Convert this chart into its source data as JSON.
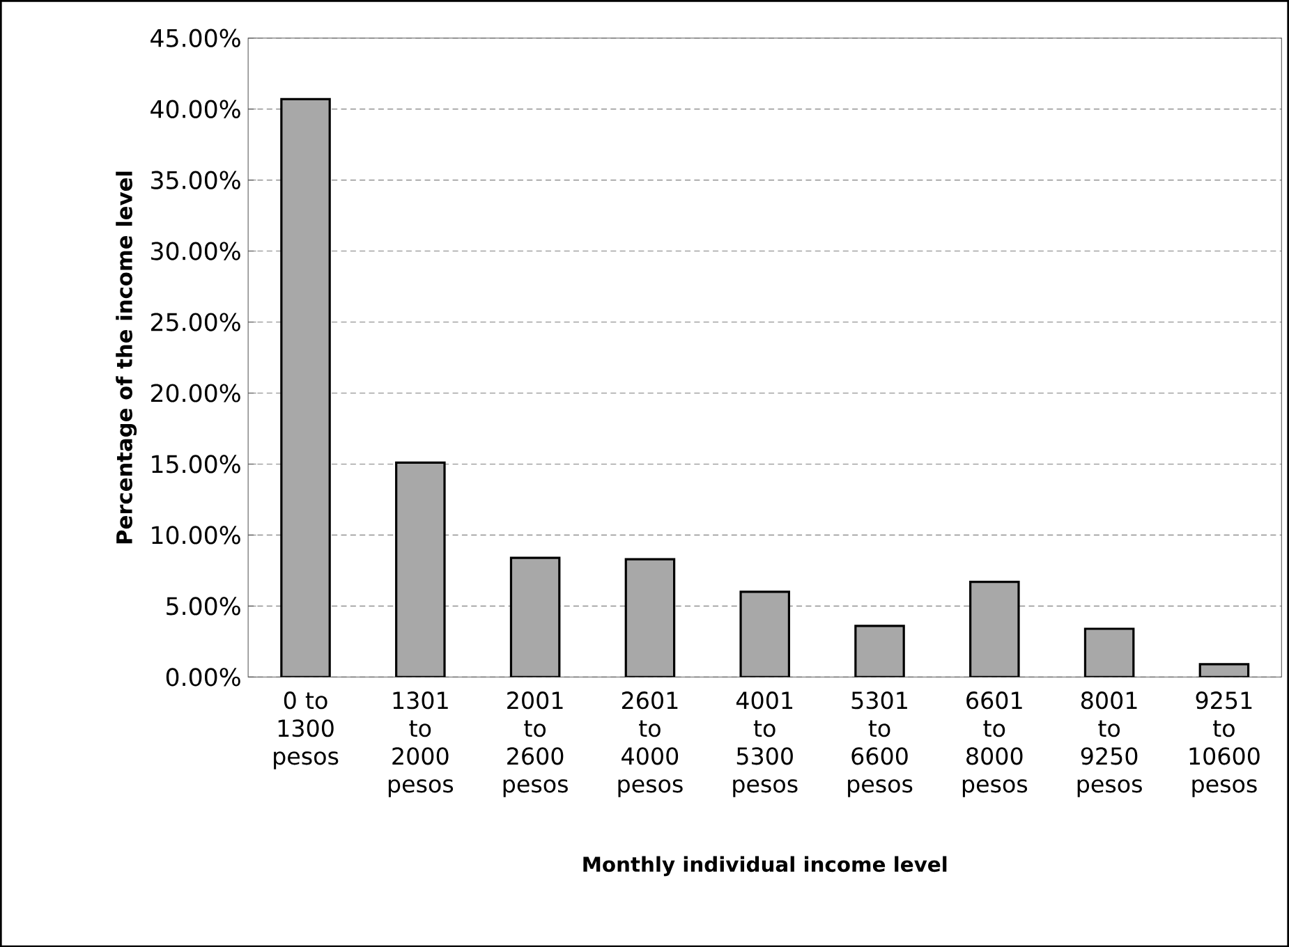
{
  "chart_data": {
    "type": "bar",
    "xlabel": "Monthly individual income level",
    "ylabel": "Percentage of the income level",
    "categories": [
      "0 to 1300 pesos",
      "1301 to 2000 pesos",
      "2001 to 2600 pesos",
      "2601 to 4000 pesos",
      "4001 to 5300 pesos",
      "5301 to 6600 pesos",
      "6601 to 8000 pesos",
      "8001 to 9250 pesos",
      "9251 to 10600 pesos"
    ],
    "values": [
      40.7,
      15.1,
      8.4,
      8.3,
      6.0,
      3.6,
      6.7,
      3.4,
      0.9
    ],
    "color": "#a8a8a8",
    "ylim": [
      0,
      45
    ],
    "yticks": [
      {
        "value": 0,
        "label": "0.00%"
      },
      {
        "value": 5,
        "label": "5.00%"
      },
      {
        "value": 10,
        "label": "10.00%"
      },
      {
        "value": 15,
        "label": "15.00%"
      },
      {
        "value": 20,
        "label": "20.00%"
      },
      {
        "value": 25,
        "label": "25.00%"
      },
      {
        "value": 30,
        "label": "30.00%"
      },
      {
        "value": 35,
        "label": "35.00%"
      },
      {
        "value": 40,
        "label": "40.00%"
      },
      {
        "value": 45,
        "label": "45.00%"
      }
    ],
    "grid": "y"
  }
}
